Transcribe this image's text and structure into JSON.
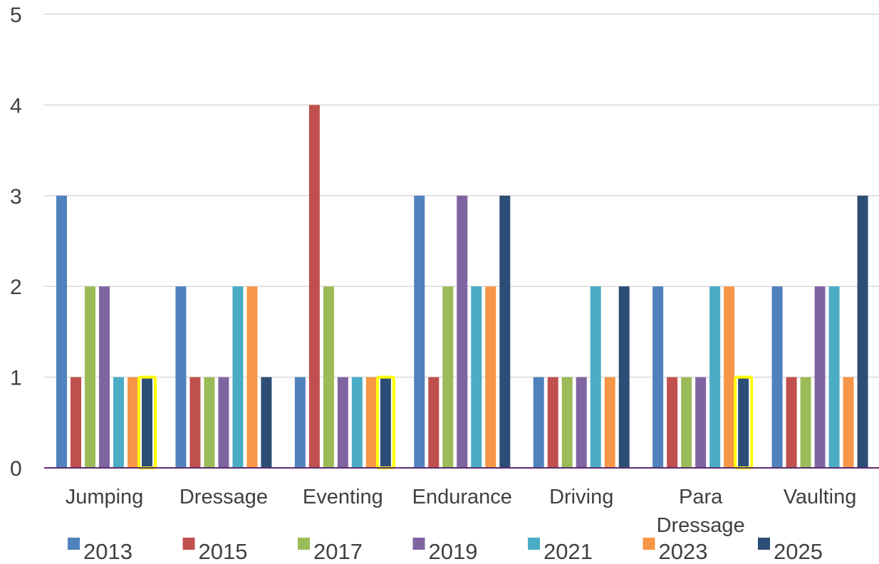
{
  "chart_data": {
    "type": "bar",
    "categories": [
      "Jumping",
      "Dressage",
      "Eventing",
      "Endurance",
      "Driving",
      "Para Dressage",
      "Vaulting"
    ],
    "series": [
      {
        "name": "2013",
        "values": [
          3,
          2,
          1,
          3,
          1,
          2,
          2
        ]
      },
      {
        "name": "2015",
        "values": [
          1,
          1,
          4,
          1,
          1,
          1,
          1
        ]
      },
      {
        "name": "2017",
        "values": [
          2,
          1,
          2,
          2,
          1,
          1,
          1
        ]
      },
      {
        "name": "2019",
        "values": [
          2,
          1,
          1,
          3,
          1,
          1,
          2
        ]
      },
      {
        "name": "2021",
        "values": [
          1,
          2,
          1,
          2,
          2,
          2,
          2
        ]
      },
      {
        "name": "2023",
        "values": [
          1,
          2,
          1,
          2,
          1,
          2,
          1
        ]
      },
      {
        "name": "2025",
        "values": [
          1,
          1,
          1,
          3,
          2,
          1,
          3
        ]
      }
    ],
    "highlighted": [
      {
        "series": "2025",
        "category": "Jumping"
      },
      {
        "series": "2025",
        "category": "Eventing"
      },
      {
        "series": "2025",
        "category": "Para Dressage"
      }
    ],
    "ylim": [
      0,
      5
    ],
    "yticks": [
      "0",
      "1",
      "2",
      "3",
      "4",
      "5"
    ],
    "grid": true,
    "legend_position": "bottom",
    "title": "",
    "xlabel": "",
    "ylabel": ""
  },
  "colors": {
    "series": [
      "#4F81BD",
      "#C0504D",
      "#9BBB59",
      "#8064A2",
      "#4BACC6",
      "#F79646",
      "#2C4D75"
    ],
    "highlight": "#FFFF00",
    "grid": "#D9D9D9",
    "axis": "#5B2D6E",
    "text": "#404040"
  }
}
